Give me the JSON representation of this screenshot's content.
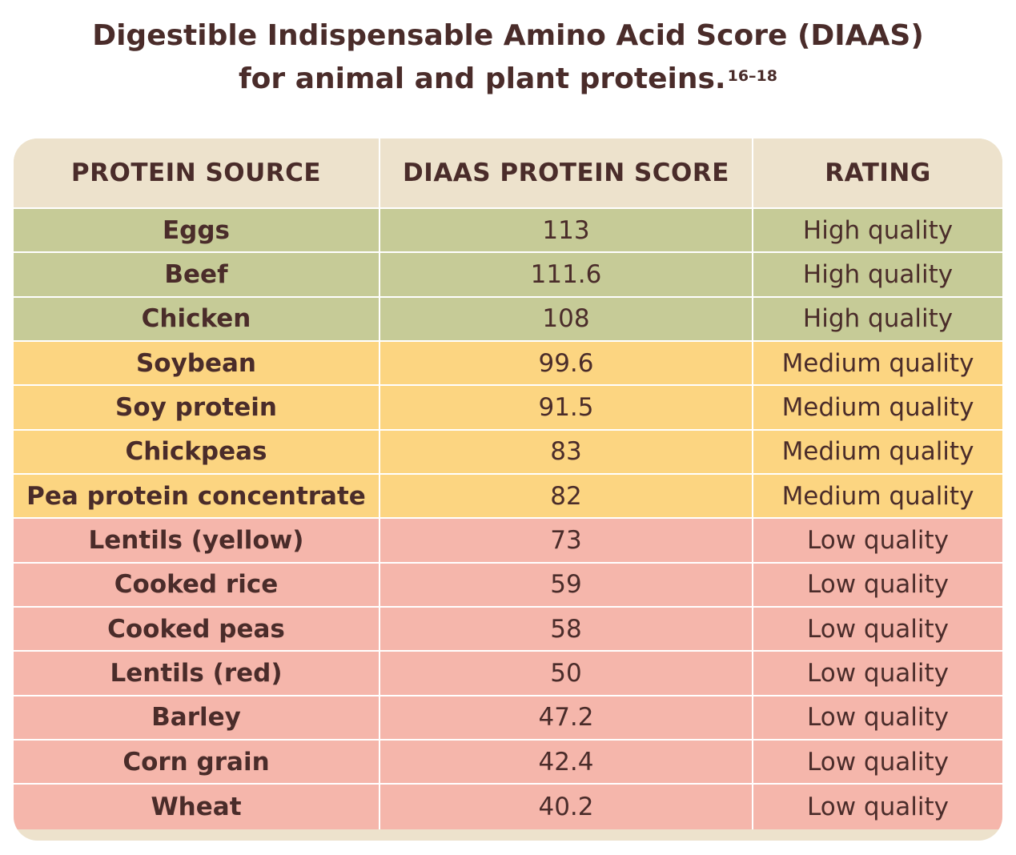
{
  "title": {
    "line1": "Digestible Indispensable Amino Acid Score (DIAAS)",
    "line2": "for animal and plant proteins.",
    "superscript": "16–18"
  },
  "colors": {
    "header": "#ede2cc",
    "high": "#c6cb97",
    "medium": "#fcd581",
    "low": "#f5b6ab",
    "text": "#4a2c2a"
  },
  "chart_data": {
    "type": "table",
    "title": "Digestible Indispensable Amino Acid Score (DIAAS) for animal and plant proteins.",
    "columns": [
      "PROTEIN SOURCE",
      "DIAAS PROTEIN SCORE",
      "RATING"
    ],
    "rows": [
      {
        "source": "Eggs",
        "score": "113",
        "rating": "High quality",
        "level": "high"
      },
      {
        "source": "Beef",
        "score": "111.6",
        "rating": "High quality",
        "level": "high"
      },
      {
        "source": "Chicken",
        "score": "108",
        "rating": "High quality",
        "level": "high"
      },
      {
        "source": "Soybean",
        "score": "99.6",
        "rating": "Medium quality",
        "level": "medium"
      },
      {
        "source": "Soy protein",
        "score": "91.5",
        "rating": "Medium quality",
        "level": "medium"
      },
      {
        "source": "Chickpeas",
        "score": "83",
        "rating": "Medium quality",
        "level": "medium"
      },
      {
        "source": "Pea protein concentrate",
        "score": "82",
        "rating": "Medium quality",
        "level": "medium"
      },
      {
        "source": "Lentils (yellow)",
        "score": "73",
        "rating": "Low quality",
        "level": "low"
      },
      {
        "source": "Cooked rice",
        "score": "59",
        "rating": "Low quality",
        "level": "low"
      },
      {
        "source": "Cooked peas",
        "score": "58",
        "rating": "Low quality",
        "level": "low"
      },
      {
        "source": "Lentils (red)",
        "score": "50",
        "rating": "Low quality",
        "level": "low"
      },
      {
        "source": "Barley",
        "score": "47.2",
        "rating": "Low quality",
        "level": "low"
      },
      {
        "source": "Corn grain",
        "score": "42.4",
        "rating": "Low quality",
        "level": "low"
      },
      {
        "source": "Wheat",
        "score": "40.2",
        "rating": "Low quality",
        "level": "low"
      }
    ]
  }
}
